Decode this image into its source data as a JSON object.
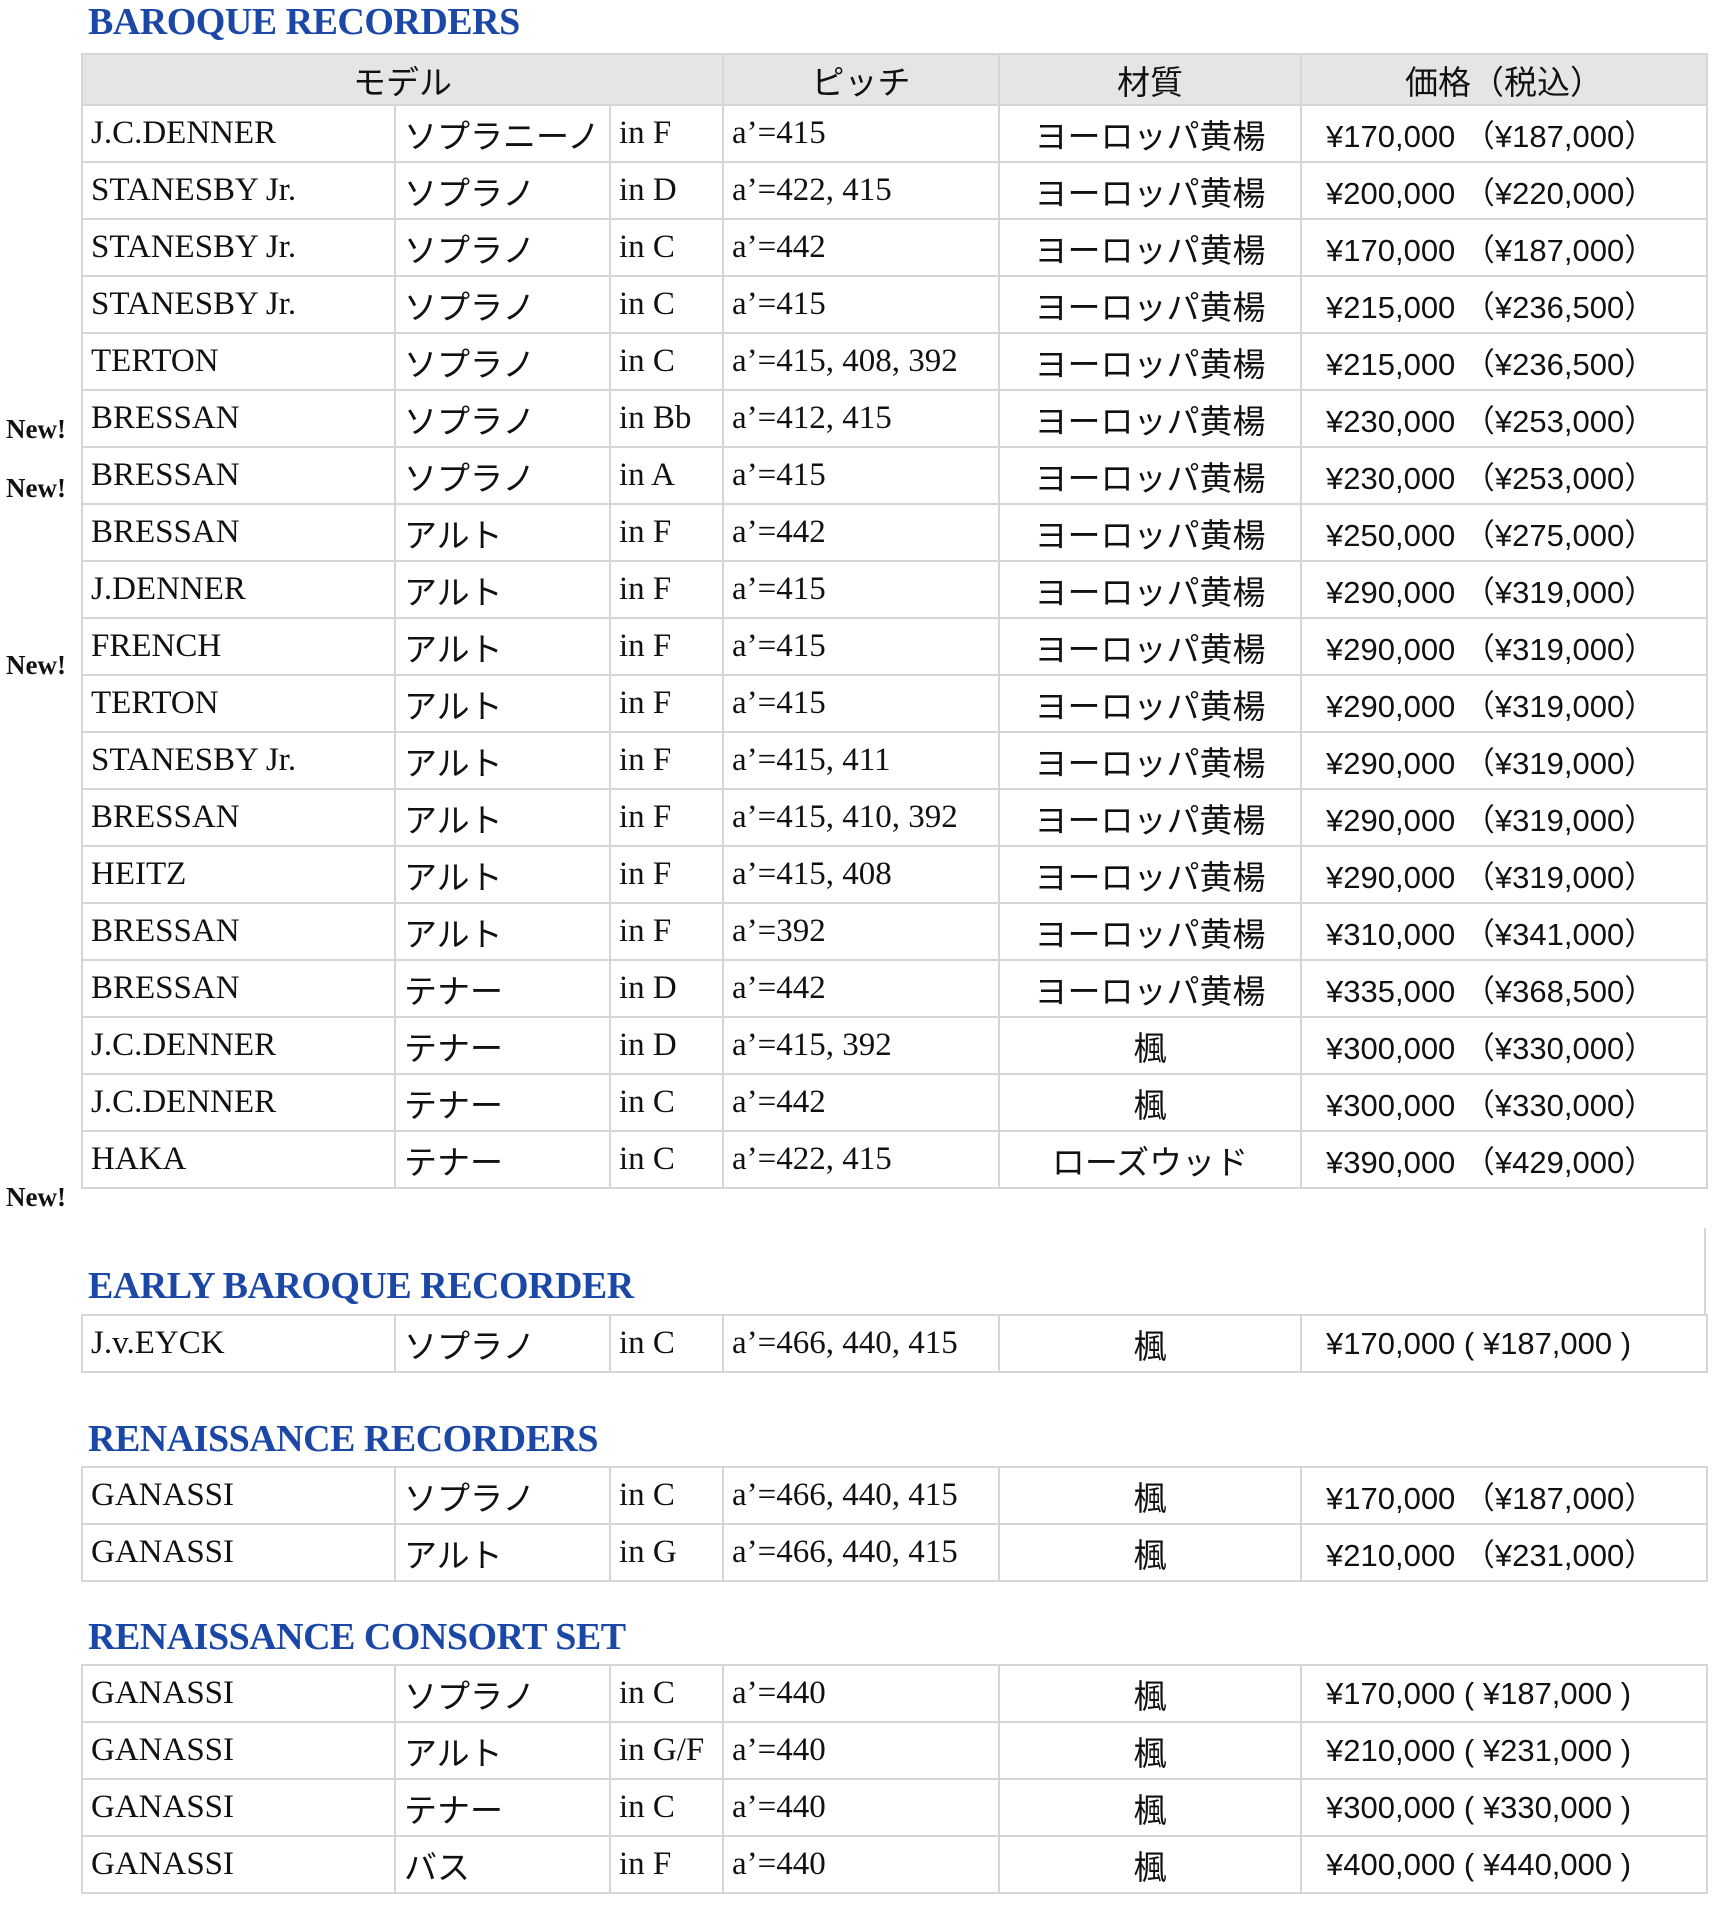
{
  "headers": {
    "model": "モデル",
    "pitch": "ピッチ",
    "material": "材質",
    "price": "価格（税込）"
  },
  "sections": [
    {
      "title": "BAROQUE RECORDERS",
      "rows": [
        {
          "new": "",
          "maker": "J.C.DENNER",
          "type": "ソプラニーノ",
          "key": "in F",
          "pitch": "a’=415",
          "material": "ヨーロッパ黄楊",
          "price": "¥170,000 （¥187,000）"
        },
        {
          "new": "",
          "maker": "STANESBY Jr.",
          "type": "ソプラノ",
          "key": "in D",
          "pitch": "a’=422, 415",
          "material": "ヨーロッパ黄楊",
          "price": "¥200,000 （¥220,000）"
        },
        {
          "new": "",
          "maker": "STANESBY Jr.",
          "type": "ソプラノ",
          "key": "in C",
          "pitch": "a’=442",
          "material": "ヨーロッパ黄楊",
          "price": "¥170,000 （¥187,000）"
        },
        {
          "new": "",
          "maker": "STANESBY Jr.",
          "type": "ソプラノ",
          "key": "in C",
          "pitch": "a’=415",
          "material": "ヨーロッパ黄楊",
          "price": "¥215,000 （¥236,500）"
        },
        {
          "new": "",
          "maker": "TERTON",
          "type": "ソプラノ",
          "key": "in C",
          "pitch": "a’=415, 408, 392",
          "material": "ヨーロッパ黄楊",
          "price": "¥215,000 （¥236,500）"
        },
        {
          "new": "New!",
          "maker": "BRESSAN",
          "type": "ソプラノ",
          "key": "in Bb",
          "pitch": "a’=412, 415",
          "material": "ヨーロッパ黄楊",
          "price": "¥230,000 （¥253,000）"
        },
        {
          "new": "New!",
          "maker": "BRESSAN",
          "type": "ソプラノ",
          "key": "in A",
          "pitch": "a’=415",
          "material": "ヨーロッパ黄楊",
          "price": "¥230,000 （¥253,000）"
        },
        {
          "new": "",
          "maker": "BRESSAN",
          "type": "アルト",
          "key": "in F",
          "pitch": "a’=442",
          "material": "ヨーロッパ黄楊",
          "price": "¥250,000 （¥275,000）"
        },
        {
          "new": "",
          "maker": "J.DENNER",
          "type": "アルト",
          "key": "in F",
          "pitch": "a’=415",
          "material": "ヨーロッパ黄楊",
          "price": "¥290,000 （¥319,000）"
        },
        {
          "new": "New!",
          "maker": "FRENCH",
          "type": "アルト",
          "key": "in F",
          "pitch": "a’=415",
          "material": "ヨーロッパ黄楊",
          "price": "¥290,000 （¥319,000）"
        },
        {
          "new": "",
          "maker": "TERTON",
          "type": "アルト",
          "key": "in F",
          "pitch": "a’=415",
          "material": "ヨーロッパ黄楊",
          "price": "¥290,000 （¥319,000）"
        },
        {
          "new": "",
          "maker": "STANESBY Jr.",
          "type": "アルト",
          "key": "in F",
          "pitch": "a’=415, 411",
          "material": "ヨーロッパ黄楊",
          "price": "¥290,000 （¥319,000）"
        },
        {
          "new": "",
          "maker": "BRESSAN",
          "type": "アルト",
          "key": "in F",
          "pitch": "a’=415, 410, 392",
          "material": "ヨーロッパ黄楊",
          "price": "¥290,000 （¥319,000）"
        },
        {
          "new": "",
          "maker": "HEITZ",
          "type": "アルト",
          "key": "in F",
          "pitch": "a’=415, 408",
          "material": "ヨーロッパ黄楊",
          "price": "¥290,000 （¥319,000）"
        },
        {
          "new": "",
          "maker": "BRESSAN",
          "type": "アルト",
          "key": "in F",
          "pitch": "a’=392",
          "material": "ヨーロッパ黄楊",
          "price": "¥310,000 （¥341,000）"
        },
        {
          "new": "",
          "maker": "BRESSAN",
          "type": "テナー",
          "key": "in D",
          "pitch": "a’=442",
          "material": "ヨーロッパ黄楊",
          "price": "¥335,000 （¥368,500）"
        },
        {
          "new": "",
          "maker": "J.C.DENNER",
          "type": "テナー",
          "key": "in D",
          "pitch": "a’=415, 392",
          "material": "楓",
          "price": "¥300,000 （¥330,000）"
        },
        {
          "new": "",
          "maker": "J.C.DENNER",
          "type": "テナー",
          "key": "in C",
          "pitch": "a’=442",
          "material": "楓",
          "price": "¥300,000 （¥330,000）"
        },
        {
          "new": "New!",
          "maker": "HAKA",
          "type": "テナー",
          "key": "in C",
          "pitch": "a’=422, 415",
          "material": "ローズウッド",
          "price": "¥390,000 （¥429,000）"
        }
      ]
    },
    {
      "title": "EARLY BAROQUE RECORDER",
      "rows": [
        {
          "new": "",
          "maker": "J.v.EYCK",
          "type": "ソプラノ",
          "key": "in C",
          "pitch": "a’=466, 440, 415",
          "material": "楓",
          "price": "¥170,000 ( ¥187,000 )"
        }
      ]
    },
    {
      "title": "RENAISSANCE RECORDERS",
      "rows": [
        {
          "new": "",
          "maker": "GANASSI",
          "type": "ソプラノ",
          "key": "in C",
          "pitch": "a’=466, 440, 415",
          "material": "楓",
          "price": "¥170,000 （¥187,000）"
        },
        {
          "new": "",
          "maker": "GANASSI",
          "type": "アルト",
          "key": "in G",
          "pitch": "a’=466, 440, 415",
          "material": "楓",
          "price": "¥210,000 （¥231,000）"
        }
      ]
    },
    {
      "title": "RENAISSANCE CONSORT SET",
      "rows": [
        {
          "new": "",
          "maker": "GANASSI",
          "type": "ソプラノ",
          "key": "in C",
          "pitch": "a’=440",
          "material": "楓",
          "price": "¥170,000 ( ¥187,000 )"
        },
        {
          "new": "",
          "maker": "GANASSI",
          "type": "アルト",
          "key": "in G/F",
          "pitch": "a’=440",
          "material": "楓",
          "price": "¥210,000 ( ¥231,000 )"
        },
        {
          "new": "",
          "maker": "GANASSI",
          "type": "テナー",
          "key": "in C",
          "pitch": "a’=440",
          "material": "楓",
          "price": "¥300,000 ( ¥330,000 )"
        },
        {
          "new": "",
          "maker": "GANASSI",
          "type": "バス",
          "key": "in F",
          "pitch": "a’=440",
          "material": "楓",
          "price": "¥400,000 ( ¥440,000 )"
        }
      ]
    }
  ],
  "colors": {
    "section_title": "#1b48a6",
    "header_bg": "#e5e5e5",
    "border": "#d6d6d6"
  }
}
